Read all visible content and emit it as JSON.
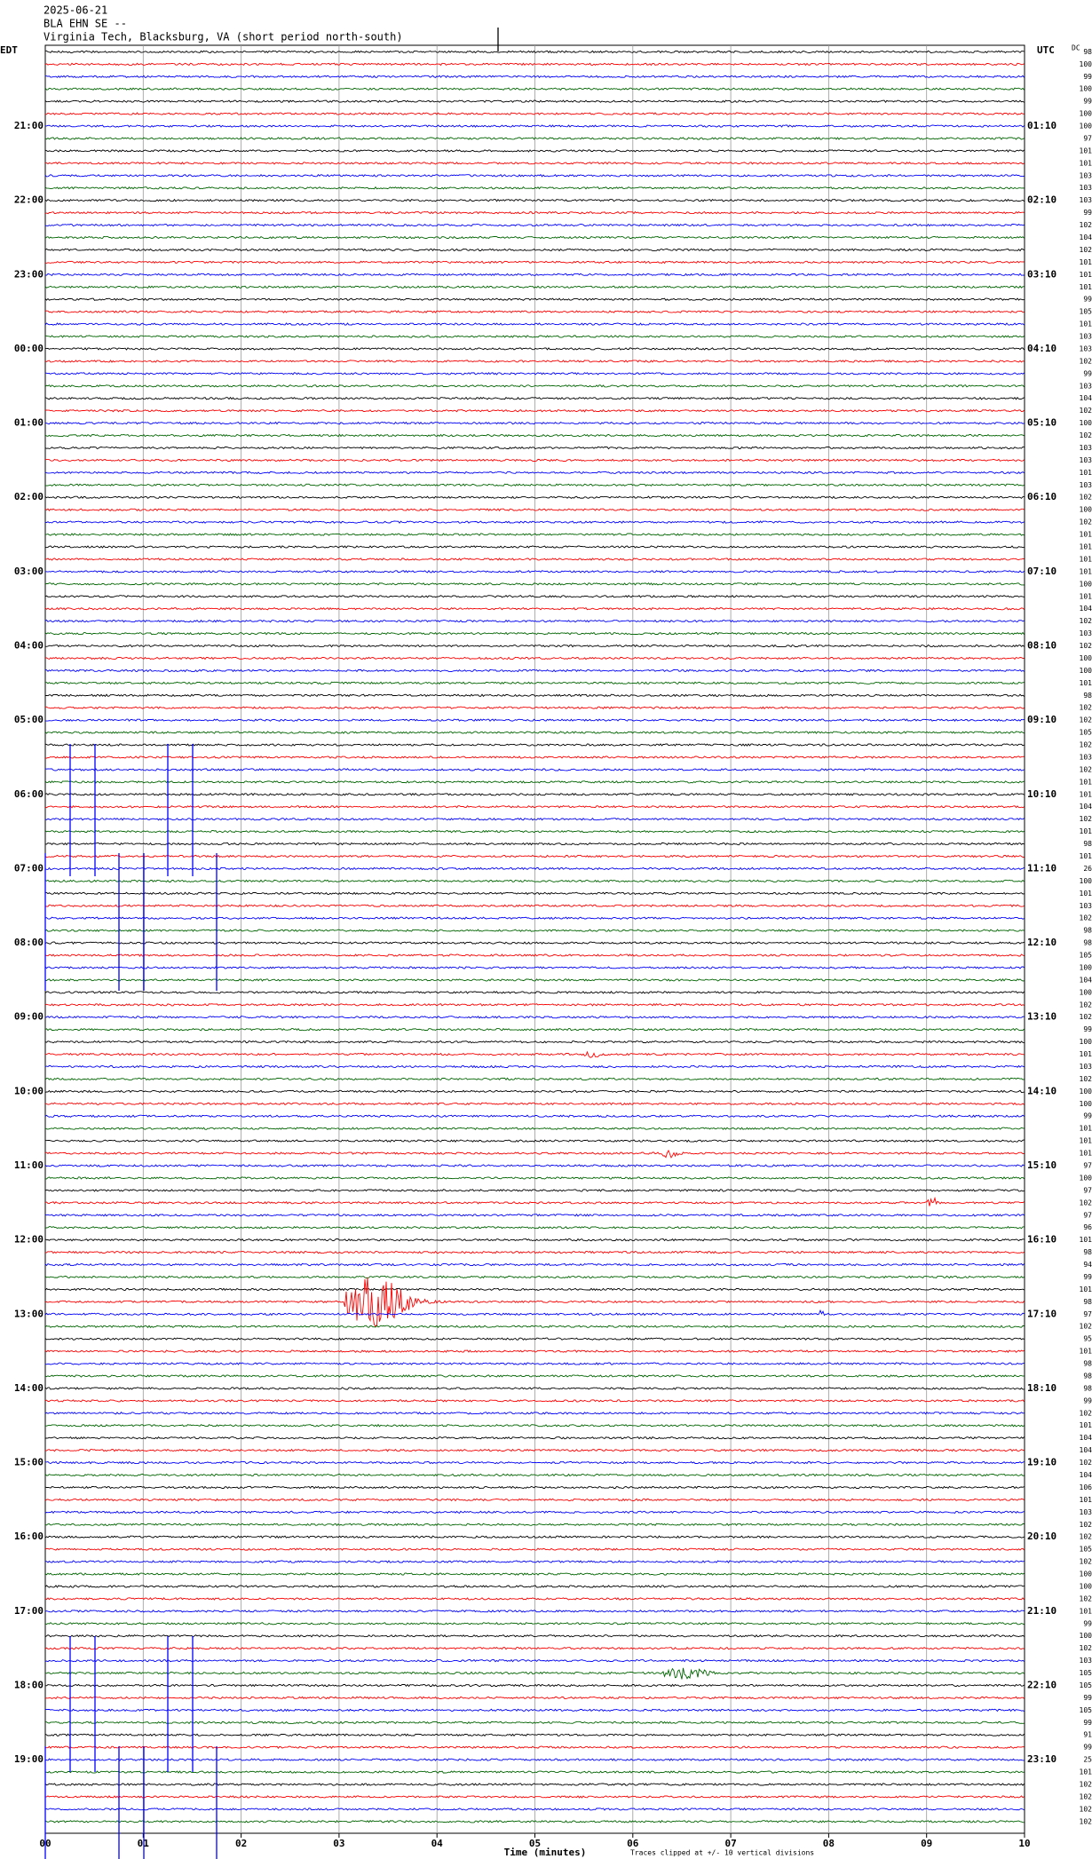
{
  "header": {
    "date": "2025-06-21",
    "station": "BLA EHN SE --",
    "location": "Virginia Tech, Blacksburg, VA (short period north-south)"
  },
  "left_axis": {
    "title": "EDT",
    "labels": [
      "21:00",
      "22:00",
      "23:00",
      "00:00",
      "01:00",
      "02:00",
      "03:00",
      "04:00",
      "05:00",
      "06:00",
      "07:00",
      "08:00",
      "09:00",
      "10:00",
      "11:00",
      "12:00",
      "13:00",
      "14:00",
      "15:00",
      "16:00",
      "17:00",
      "18:00",
      "19:00"
    ]
  },
  "right_axis": {
    "title": "UTC",
    "labels": [
      "01:10",
      "02:10",
      "03:10",
      "04:10",
      "05:10",
      "06:10",
      "07:10",
      "08:10",
      "09:10",
      "10:10",
      "11:10",
      "12:10",
      "13:10",
      "14:10",
      "15:10",
      "16:10",
      "17:10",
      "18:10",
      "19:10",
      "20:10",
      "21:10",
      "22:10",
      "23:10"
    ]
  },
  "dc": {
    "title": "DC",
    "values": [
      98,
      100,
      99,
      100,
      99,
      100,
      100,
      97,
      101,
      101,
      103,
      103,
      103,
      99,
      102,
      104,
      102,
      101,
      101,
      101,
      99,
      105,
      101,
      103,
      103,
      102,
      99,
      103,
      104,
      102,
      100,
      102,
      103,
      103,
      101,
      103,
      102,
      100,
      102,
      101,
      101,
      101,
      101,
      100,
      101,
      104,
      102,
      103,
      102,
      100,
      100,
      101,
      98,
      102,
      102,
      105,
      102,
      103,
      102,
      101,
      101,
      104,
      102,
      101,
      98,
      101,
      26,
      100,
      101,
      103,
      102,
      98,
      98,
      105,
      100,
      104,
      100,
      102,
      102,
      99,
      100,
      101,
      103,
      102,
      100,
      100,
      99,
      101,
      101,
      101,
      97,
      100,
      97,
      102,
      97,
      96,
      101,
      98,
      94,
      99,
      101,
      98,
      97,
      102,
      95,
      101,
      98,
      98,
      98,
      99,
      102,
      101,
      104,
      104,
      102,
      104,
      106,
      101,
      103,
      102,
      102,
      105,
      102,
      100,
      100,
      102,
      101,
      99,
      100,
      102,
      103,
      105,
      105,
      99,
      105,
      99,
      91,
      99,
      25,
      101,
      102,
      102,
      102,
      102
    ]
  },
  "x_axis": {
    "ticks": [
      "00",
      "01",
      "02",
      "03",
      "04",
      "05",
      "06",
      "07",
      "08",
      "09",
      "10"
    ],
    "label": "Time (minutes)"
  },
  "footnote": "Traces clipped at +/- 10 vertical divisions"
}
